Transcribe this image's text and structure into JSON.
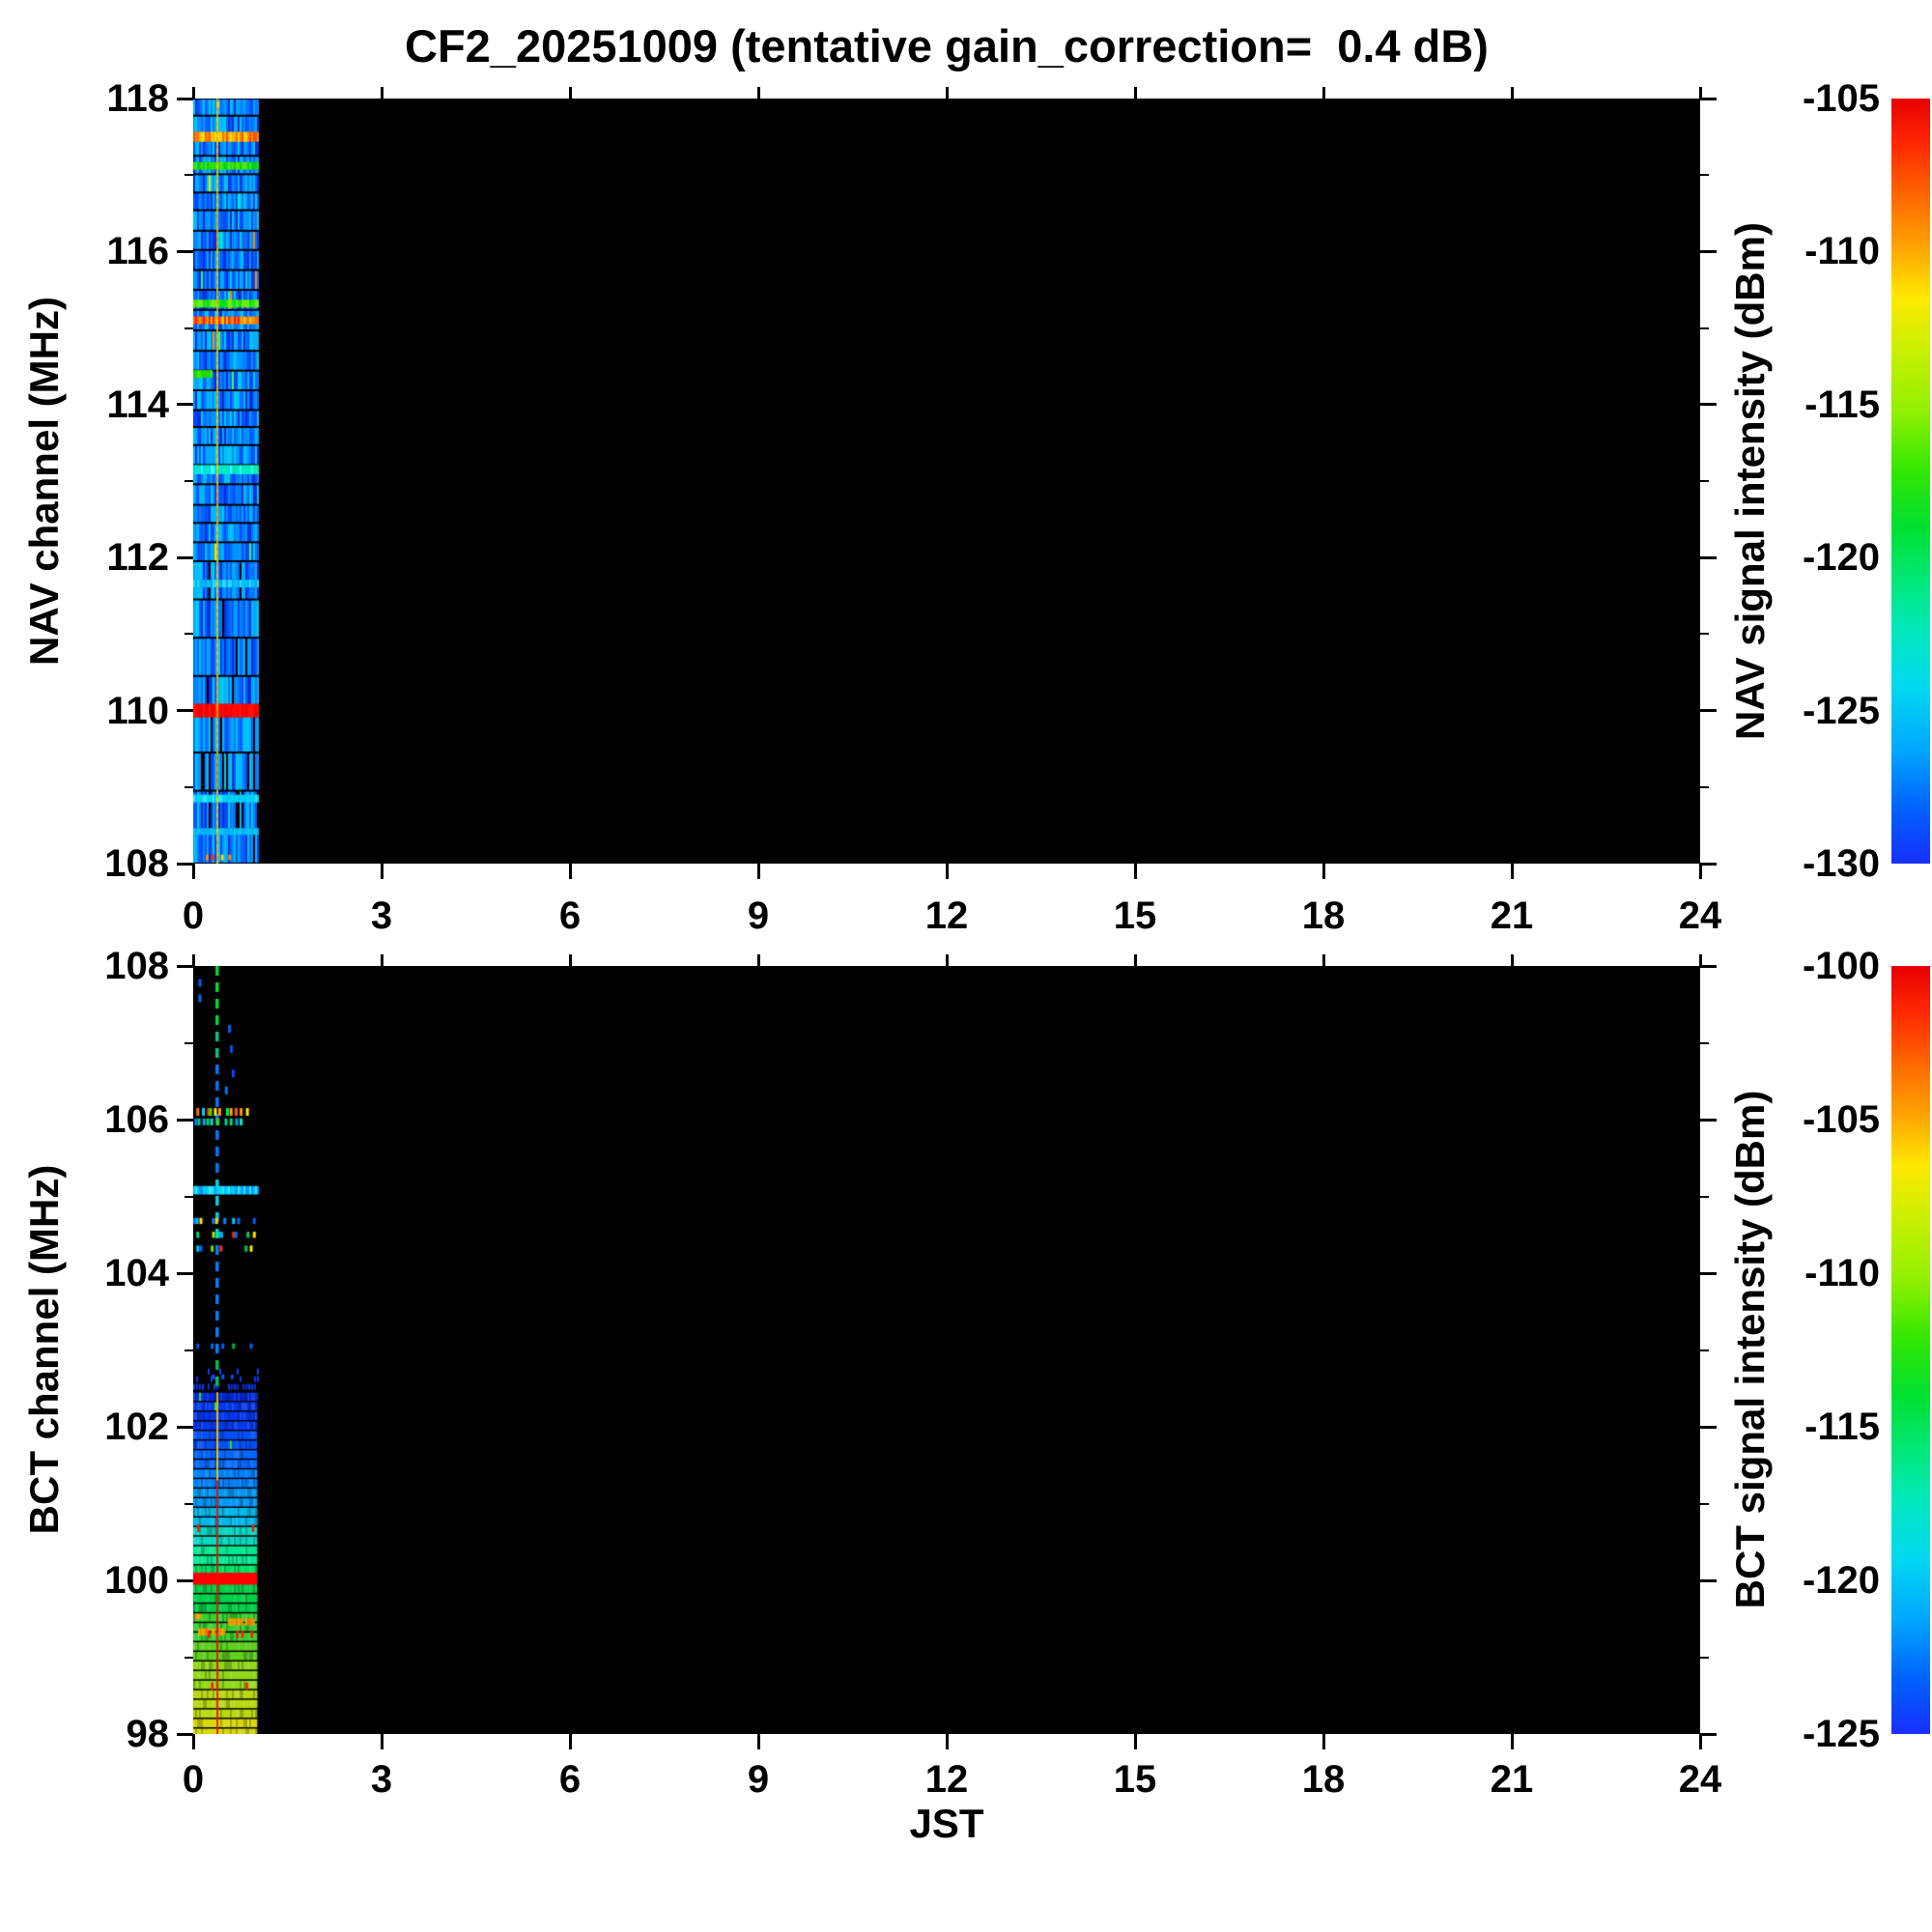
{
  "title": "CF2_20251009 (tentative gain_correction=  0.4 dB)",
  "x_axis": {
    "label": "JST",
    "tick_labels": [
      "0",
      "3",
      "6",
      "9",
      "12",
      "15",
      "18",
      "21",
      "24"
    ],
    "tick_values": [
      0,
      3,
      6,
      9,
      12,
      15,
      18,
      21,
      24
    ],
    "range_hours": [
      0,
      24
    ]
  },
  "panels": [
    {
      "name": "NAV",
      "y_axis": {
        "label": "NAV channel (MHz)",
        "range_mhz": [
          108,
          118
        ],
        "major_ticks": [
          118,
          116,
          114,
          112,
          110,
          108
        ],
        "minor_ticks": [
          117,
          115,
          113,
          111,
          109
        ]
      },
      "colorbar": {
        "label": "NAV signal intensity (dBm)",
        "range_dbm": [
          -130,
          -105
        ],
        "tick_labels": [
          "-105",
          "-110",
          "-115",
          "-120",
          "-125",
          "-130"
        ],
        "tick_values": [
          -105,
          -110,
          -115,
          -120,
          -125,
          -130
        ]
      }
    },
    {
      "name": "BCT",
      "y_axis": {
        "label": "BCT channel (MHz)",
        "range_mhz": [
          98,
          108
        ],
        "major_ticks": [
          108,
          106,
          104,
          102,
          100,
          98
        ],
        "minor_ticks": [
          107,
          105,
          103,
          101,
          99
        ]
      },
      "colorbar": {
        "label": "BCT signal intensity (dBm)",
        "range_dbm": [
          -125,
          -100
        ],
        "tick_labels": [
          "-100",
          "-105",
          "-110",
          "-115",
          "-120",
          "-125"
        ],
        "tick_values": [
          -100,
          -105,
          -110,
          -115,
          -120,
          -125
        ]
      }
    }
  ],
  "colors": {
    "background": "#ffffff",
    "plot_background": "#000000",
    "text": "#000000",
    "rainbow_stops": [
      [
        "0%",
        "#e80000"
      ],
      [
        "6%",
        "#ff2800"
      ],
      [
        "13%",
        "#ff6a00"
      ],
      [
        "20%",
        "#ffaa00"
      ],
      [
        "26%",
        "#ffe800"
      ],
      [
        "33%",
        "#c8f000"
      ],
      [
        "41%",
        "#90f000"
      ],
      [
        "48%",
        "#38e800"
      ],
      [
        "56%",
        "#00e030"
      ],
      [
        "63%",
        "#00e878"
      ],
      [
        "70%",
        "#00e8c0"
      ],
      [
        "77%",
        "#00d8f0"
      ],
      [
        "85%",
        "#00a8ff"
      ],
      [
        "93%",
        "#0060ff"
      ],
      [
        "100%",
        "#1830ff"
      ]
    ]
  },
  "chart_data": [
    {
      "type": "heatmap",
      "name": "NAV spectrogram",
      "x_unit": "JST hours",
      "y_unit": "MHz",
      "value_unit": "dBm",
      "x_range": [
        0,
        24
      ],
      "y_range": [
        108,
        118
      ],
      "value_range": [
        -130,
        -105
      ],
      "data_extent_hours": [
        0,
        1.02
      ],
      "note": "data present only 0-1 JST; rest of panel is black (no data)",
      "noise_floor_dbm": [
        -129,
        -124
      ],
      "noise_palette": [
        "#0030dd",
        "#0048ff",
        "#0058ff",
        "#0068ff",
        "#0078ff",
        "#0088ff",
        "#0098ff",
        "#00a8ff",
        "#00b8ff",
        "#00c8f0"
      ],
      "speckle_palette": [
        "#00f0d0",
        "#50f050",
        "#f0e800",
        "#ff8800"
      ],
      "row_step_mhz_above_112": 0.22,
      "row_step_mhz_below_112": 0.5,
      "vertical_line": {
        "time_h": 0.37,
        "colors": [
          "#ffb000",
          "#ffd800"
        ],
        "approx_dbm": -110
      },
      "bands": [
        {
          "freq_mhz": 117.5,
          "approx_dbm": -109,
          "h_mhz": 0.13,
          "t0": 0,
          "t1": 1.02,
          "colors": [
            "#ff6a00",
            "#ff8c00",
            "#ffb400",
            "#ff5000",
            "#ffd800"
          ]
        },
        {
          "freq_mhz": 117.12,
          "approx_dbm": -117,
          "h_mhz": 0.1,
          "t0": 0,
          "t1": 1.02,
          "colors": [
            "#2ae000",
            "#00d020",
            "#50e800"
          ]
        },
        {
          "freq_mhz": 115.32,
          "approx_dbm": -116,
          "h_mhz": 0.1,
          "t0": 0,
          "t1": 1.02,
          "colors": [
            "#30e800",
            "#00e020",
            "#70f000"
          ]
        },
        {
          "freq_mhz": 115.1,
          "approx_dbm": -106,
          "h_mhz": 0.1,
          "t0": 0,
          "t1": 1.02,
          "colors": [
            "#ff2000",
            "#ff6a00",
            "#ffc800",
            "#ff9000"
          ]
        },
        {
          "freq_mhz": 114.4,
          "approx_dbm": -117,
          "h_mhz": 0.1,
          "t0": 0,
          "t1": 0.3,
          "colors": [
            "#20d800",
            "#40e800"
          ]
        },
        {
          "freq_mhz": 113.15,
          "approx_dbm": -122,
          "h_mhz": 0.12,
          "t0": 0,
          "t1": 1.02,
          "colors": [
            "#00e8d0",
            "#00f0b0",
            "#30ffe8",
            "#00d8f0"
          ]
        },
        {
          "freq_mhz": 111.66,
          "approx_dbm": -123,
          "h_mhz": 0.1,
          "t0": 0,
          "t1": 1.02,
          "colors": [
            "#00c0f8",
            "#30d8ff",
            "#00a8f0"
          ]
        },
        {
          "freq_mhz": 110.0,
          "approx_dbm": -105,
          "h_mhz": 0.18,
          "t0": 0,
          "t1": 1.02,
          "colors": [
            "#ff0800",
            "#f00000",
            "#ff1800"
          ]
        },
        {
          "freq_mhz": 108.85,
          "approx_dbm": -122,
          "h_mhz": 0.1,
          "t0": 0,
          "t1": 1.02,
          "colors": [
            "#00d8e8",
            "#00c8ff",
            "#30e8ff"
          ]
        },
        {
          "freq_mhz": 108.42,
          "approx_dbm": -123,
          "h_mhz": 0.09,
          "t0": 0,
          "t1": 1.02,
          "colors": [
            "#00b0ff",
            "#00c8f0"
          ]
        }
      ],
      "speckles": [
        {
          "freq_mhz": 108.08,
          "time_h": 0.2,
          "color": "#ff8800"
        },
        {
          "freq_mhz": 108.08,
          "time_h": 0.29,
          "color": "#ff3000"
        },
        {
          "freq_mhz": 108.08,
          "time_h": 0.44,
          "color": "#ffd000"
        },
        {
          "freq_mhz": 108.08,
          "time_h": 0.56,
          "color": "#ff8800"
        },
        {
          "freq_mhz": 117.92,
          "time_h": 0.37,
          "color": "#ffc800"
        }
      ]
    },
    {
      "type": "heatmap",
      "name": "BCT spectrogram",
      "x_unit": "JST hours",
      "y_unit": "MHz",
      "value_unit": "dBm",
      "x_range": [
        0,
        24
      ],
      "y_range": [
        98,
        108
      ],
      "value_range": [
        -125,
        -100
      ],
      "data_extent_hours": [
        0,
        1.02
      ],
      "note": "sparse signals 108-102.5 MHz, dense FM-band strip 102.45-98 MHz, only 0-1 JST",
      "dense_strip": {
        "freq_top_mhz": 102.45,
        "freq_bottom_mhz": 98.0,
        "row_step_mhz": 0.125,
        "gradient_stops": [
          [
            102.3,
            "#0028d8",
            -123
          ],
          [
            102.0,
            "#0038f0",
            -122
          ],
          [
            101.7,
            "#0050ff",
            -121
          ],
          [
            101.45,
            "#0068ff",
            -120.5
          ],
          [
            101.2,
            "#0080ff",
            -120
          ],
          [
            100.95,
            "#0098f8",
            -119
          ],
          [
            100.7,
            "#00b8e8",
            -118
          ],
          [
            100.45,
            "#00d8c0",
            -117
          ],
          [
            100.25,
            "#00e890",
            -116
          ],
          [
            100.08,
            "#00e060",
            -115
          ],
          [
            99.93,
            "#ff0000",
            -100
          ],
          [
            99.55,
            "#00d048",
            -114
          ],
          [
            99.25,
            "#38d030",
            -113.5
          ],
          [
            98.9,
            "#60d020",
            -112
          ],
          [
            98.55,
            "#90d818",
            -111
          ],
          [
            98.25,
            "#b8d810",
            -110
          ],
          [
            97.9,
            "#d8d808",
            -108
          ]
        ],
        "red_band": {
          "freq_mhz": 100.0,
          "approx_dbm": -100
        },
        "orange_patches": [
          {
            "t0": 0.08,
            "t1": 0.5,
            "freq_mhz": 99.33,
            "h_mhz": 0.09
          },
          {
            "t0": 0.55,
            "t1": 0.97,
            "freq_mhz": 99.46,
            "h_mhz": 0.09
          },
          {
            "t0": 0.0,
            "t1": 0.1,
            "freq_mhz": 99.53,
            "h_mhz": 0.07
          }
        ],
        "orange_colors": [
          "#ff9000",
          "#ffb000",
          "#ff7000"
        ],
        "orange_approx_dbm": -104,
        "red_vline": {
          "time_h": 0.37,
          "color_upper": "#ffc800",
          "color_lower": "#e81000",
          "switch_freq_mhz": 101.3
        },
        "red_ticks": [
          {
            "freq_mhz": 99.3,
            "time_h": 0.25
          },
          {
            "freq_mhz": 99.3,
            "time_h": 0.7
          },
          {
            "freq_mhz": 99.3,
            "time_h": 0.78
          },
          {
            "freq_mhz": 99.3,
            "time_h": 0.93
          },
          {
            "freq_mhz": 100.68,
            "time_h": 0.08
          },
          {
            "freq_mhz": 100.68,
            "time_h": 0.95
          },
          {
            "freq_mhz": 98.62,
            "time_h": 0.3
          },
          {
            "freq_mhz": 98.62,
            "time_h": 0.85
          }
        ],
        "transition_rows": [
          {
            "freq_mhz": 102.52,
            "density": 0.7,
            "colors": [
              "#0030e0",
              "#0040ff"
            ]
          },
          {
            "freq_mhz": 102.62,
            "density": 0.25,
            "colors": [
              "#0038f0"
            ]
          },
          {
            "freq_mhz": 102.72,
            "density": 0.08,
            "colors": [
              "#0040ff"
            ]
          }
        ]
      },
      "dashed_vline": {
        "time_h": 0.37,
        "freq_top": 108,
        "freq_bottom": 102.45,
        "color_stops": [
          [
            107.35,
            "#00d830"
          ],
          [
            106.75,
            "#00c888"
          ],
          [
            105.35,
            "#0078ff"
          ],
          [
            104.45,
            "#00d0e8"
          ],
          [
            103.0,
            "#0080ff"
          ],
          [
            98,
            "#00c050"
          ]
        ]
      },
      "cyan_band": {
        "freq_mhz": 105.08,
        "h_mhz": 0.11,
        "t0": 0,
        "t1": 1.02,
        "colors": [
          "#00d8ff",
          "#00c0ff",
          "#30e8ff",
          "#0098ff"
        ],
        "approx_dbm": -119
      },
      "dash_rows": [
        {
          "f": 106.1,
          "h": 0.1,
          "dashes": [
            [
              0.05,
              0.035,
              "#ff7000"
            ],
            [
              0.14,
              0.02,
              "#00d0ff"
            ],
            [
              0.22,
              0.015,
              "#ff3000"
            ],
            [
              0.25,
              0.05,
              "#40e000"
            ],
            [
              0.33,
              0.02,
              "#ffe800"
            ],
            [
              0.4,
              0.012,
              "#ff9000"
            ],
            [
              0.52,
              0.05,
              "#00e848"
            ],
            [
              0.58,
              0.025,
              "#ffa800"
            ],
            [
              0.66,
              0.018,
              "#ff6000"
            ],
            [
              0.74,
              0.03,
              "#ff9800"
            ],
            [
              0.84,
              0.015,
              "#ffe800"
            ]
          ]
        },
        {
          "f": 105.97,
          "h": 0.09,
          "dashes": [
            [
              0.02,
              0.03,
              "#0078ff"
            ],
            [
              0.07,
              0.045,
              "#00c860"
            ],
            [
              0.15,
              0.03,
              "#00a0ff"
            ],
            [
              0.21,
              0.04,
              "#00dc48"
            ],
            [
              0.27,
              0.05,
              "#00c8f0"
            ],
            [
              0.36,
              0.06,
              "#30d828"
            ],
            [
              0.5,
              0.04,
              "#00c890"
            ],
            [
              0.58,
              0.045,
              "#00e458"
            ],
            [
              0.67,
              0.03,
              "#00a0ff"
            ],
            [
              0.74,
              0.02,
              "#00f0c8"
            ]
          ]
        },
        {
          "f": 104.68,
          "h": 0.08,
          "dashes": [
            [
              0.0,
              0.02,
              "#0068ff"
            ],
            [
              0.04,
              0.02,
              "#00b8ff"
            ],
            [
              0.1,
              0.015,
              "#ffe800"
            ],
            [
              0.3,
              0.02,
              "#0078ff"
            ],
            [
              0.35,
              0.02,
              "#ffc800"
            ],
            [
              0.48,
              0.02,
              "#0088ff"
            ],
            [
              0.62,
              0.02,
              "#00d0ff"
            ],
            [
              0.7,
              0.015,
              "#0068ff"
            ],
            [
              0.95,
              0.02,
              "#0058ff"
            ]
          ]
        },
        {
          "f": 104.5,
          "h": 0.08,
          "dashes": [
            [
              0.05,
              0.02,
              "#00d860"
            ],
            [
              0.3,
              0.03,
              "#a8e800"
            ],
            [
              0.38,
              0.03,
              "#00e0a0"
            ],
            [
              0.43,
              0.04,
              "#00a8ff"
            ],
            [
              0.62,
              0.015,
              "#ff2800"
            ],
            [
              0.66,
              0.02,
              "#0068ff"
            ],
            [
              0.85,
              0.02,
              "#00d048"
            ],
            [
              0.95,
              0.015,
              "#ffe000"
            ]
          ]
        },
        {
          "f": 104.32,
          "h": 0.08,
          "dashes": [
            [
              0.05,
              0.025,
              "#00c8f0"
            ],
            [
              0.1,
              0.03,
              "#0060ff"
            ],
            [
              0.28,
              0.03,
              "#80e000"
            ],
            [
              0.42,
              0.015,
              "#ff3000"
            ],
            [
              0.82,
              0.03,
              "#00c848"
            ],
            [
              0.9,
              0.02,
              "#ffe800"
            ]
          ]
        },
        {
          "f": 103.05,
          "h": 0.07,
          "dashes": [
            [
              0.05,
              0.015,
              "#0050f0"
            ],
            [
              0.28,
              0.015,
              "#0068ff"
            ],
            [
              0.45,
              0.015,
              "#0058ff"
            ],
            [
              0.62,
              0.02,
              "#00b048"
            ],
            [
              0.9,
              0.015,
              "#0060e8"
            ]
          ]
        },
        {
          "f": 102.65,
          "h": 0.06,
          "dashes": [
            [
              0.3,
              0.015,
              "#0050ff"
            ],
            [
              0.45,
              0.02,
              "#0060ff"
            ],
            [
              0.6,
              0.015,
              "#0048e8"
            ]
          ]
        }
      ],
      "single_dashes": [
        [
          107.78,
          0.1,
          "#0060ff"
        ],
        [
          107.58,
          0.1,
          "#0070ff"
        ],
        [
          107.18,
          0.57,
          "#0060ff"
        ],
        [
          106.92,
          0.6,
          "#0052ff"
        ],
        [
          106.6,
          0.63,
          "#0048ff"
        ],
        [
          106.38,
          0.52,
          "#0078ff"
        ]
      ]
    }
  ]
}
